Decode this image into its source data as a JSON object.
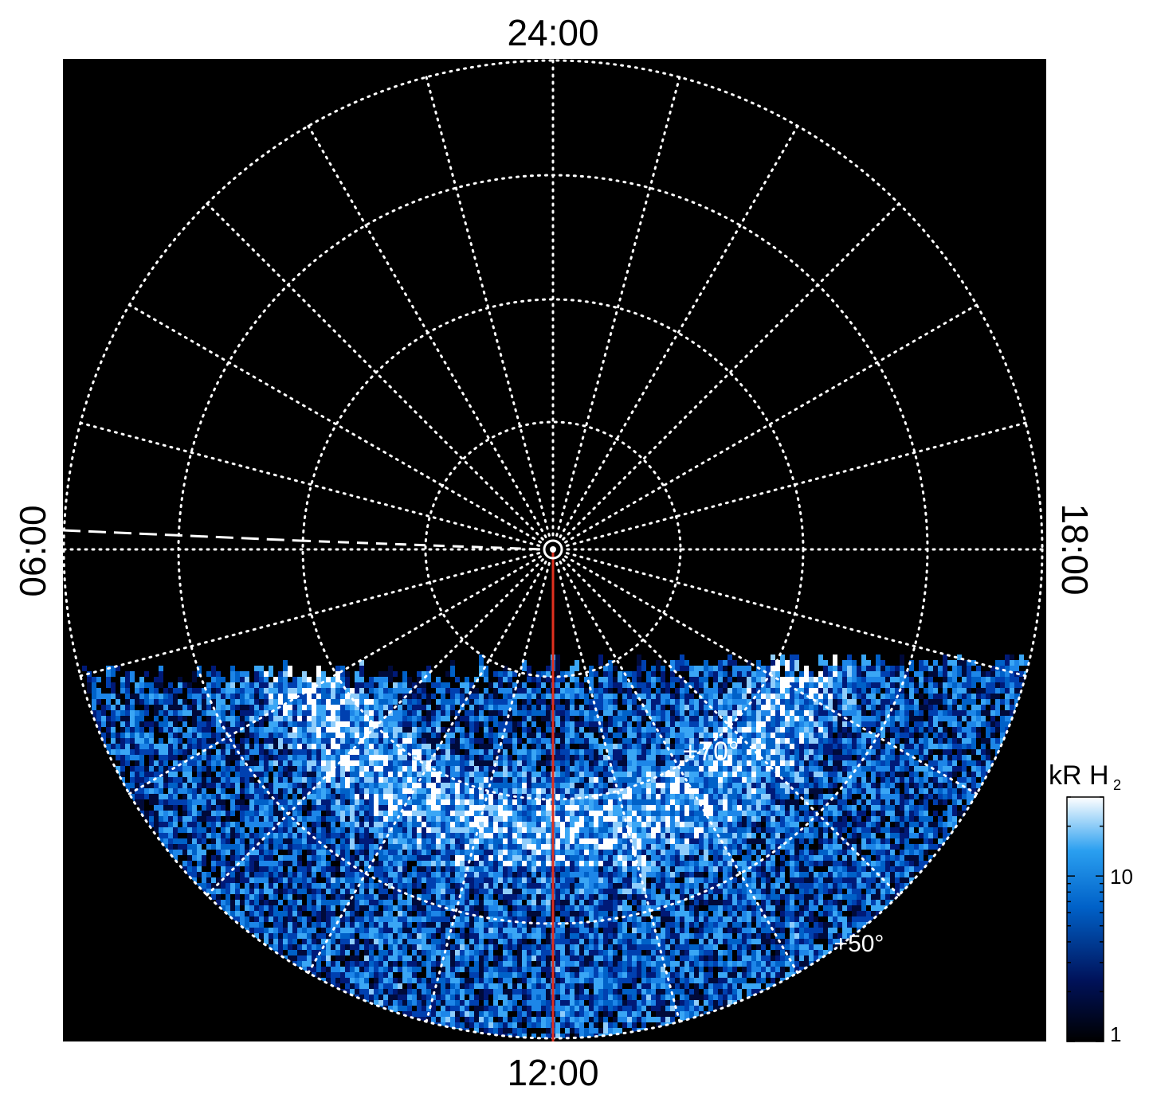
{
  "chart_data": {
    "type": "heatmap",
    "projection": "polar",
    "local_time_labels": {
      "top": "24:00",
      "bottom": "12:00",
      "left": "06:00",
      "right": "18:00"
    },
    "latitude_labels": [
      "+70°",
      "+50°"
    ],
    "grid": "dotted white latitude circles and local-time meridians",
    "colorbar": {
      "title": "kR H",
      "title_subscript": "2",
      "scale": "log",
      "tick_labels": [
        "1",
        "10"
      ],
      "range": [
        1,
        30
      ],
      "colors": [
        "#000000",
        "#00125a",
        "#0061c8",
        "#2a9ff0",
        "#ffffff"
      ]
    },
    "red_line_local_time": "12:00",
    "dashed_line_local_time": "06:00",
    "colors": {
      "background": "#000000",
      "grid": "#ffffff",
      "red_line": "#e0301e",
      "frame": "#ffffff"
    }
  }
}
